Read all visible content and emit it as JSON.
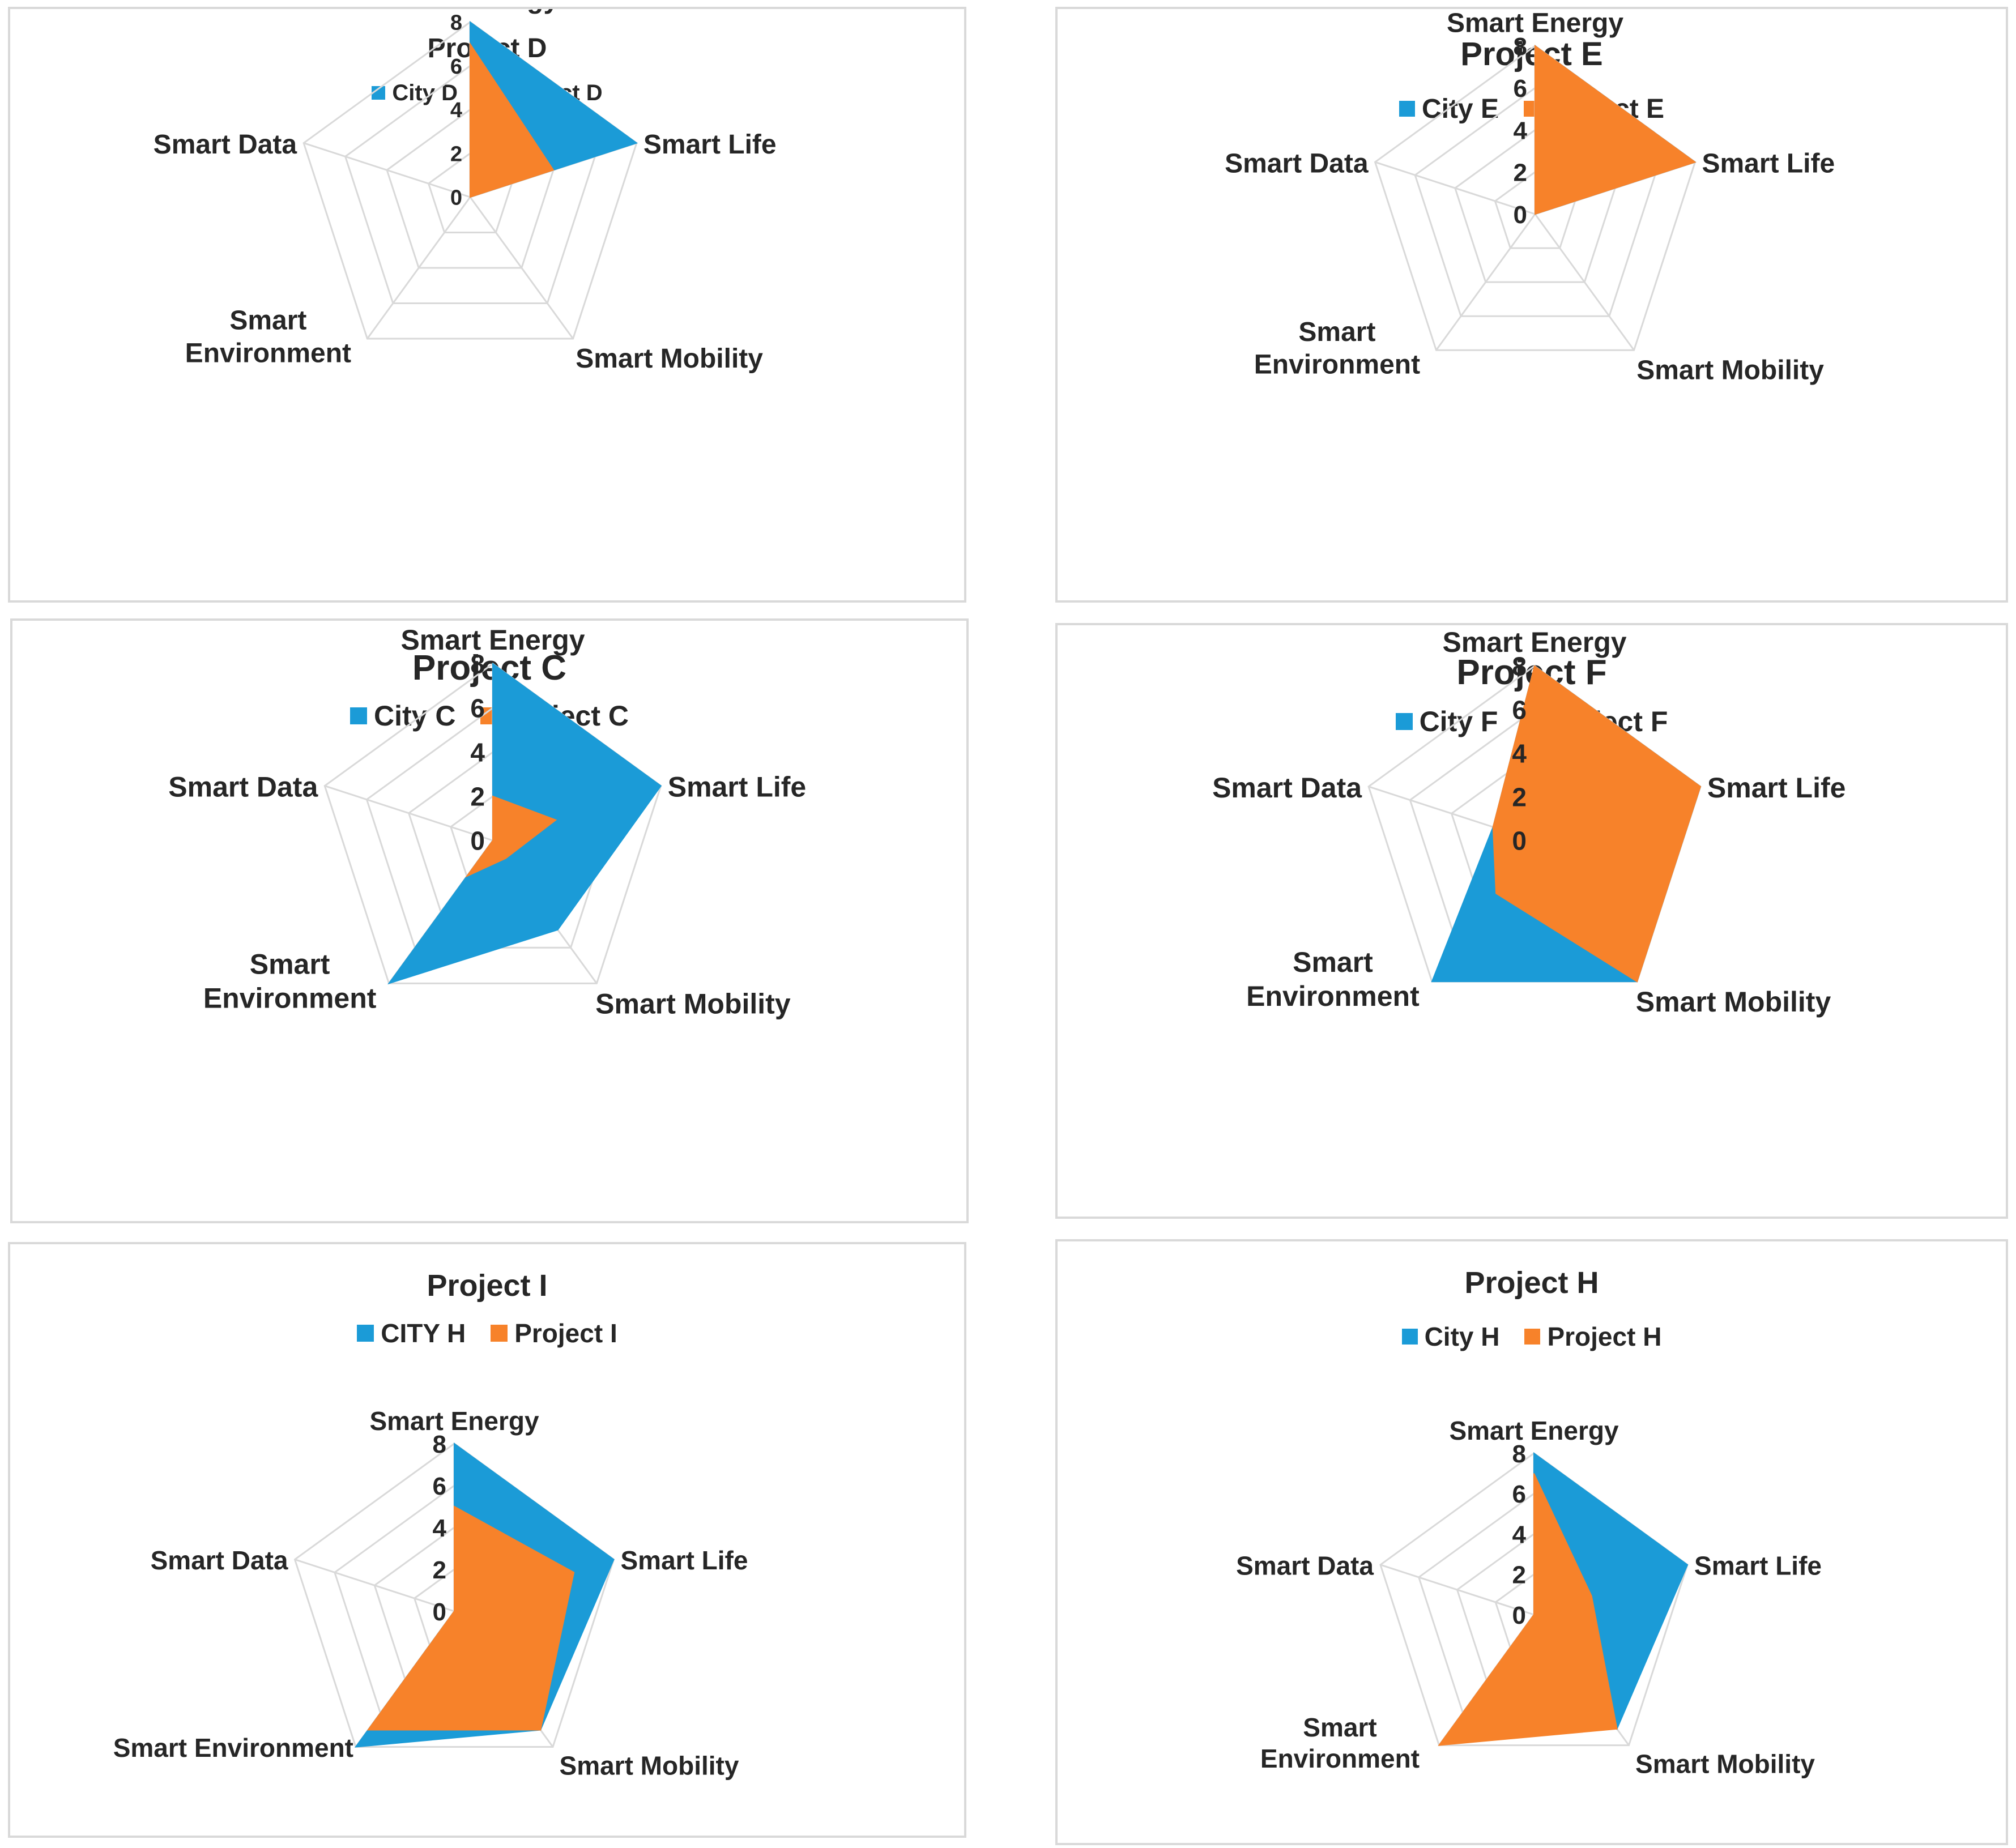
{
  "colors": {
    "city": "#1b9bd7",
    "project": "#f7822a",
    "grid": "#d9d9d9",
    "text": "#262626"
  },
  "chart_data": [
    {
      "id": "D",
      "type": "radar",
      "title": "Project D",
      "categories": [
        "Smart Energy",
        "Smart Life",
        "Smart Mobility",
        "Smart Environment",
        "Smart Data"
      ],
      "category_lines": [
        [
          "Smart Energy"
        ],
        [
          "Smart Life"
        ],
        [
          "Smart Mobility"
        ],
        [
          "Smart",
          "Environment"
        ],
        [
          "Smart Data"
        ]
      ],
      "ticks": [
        "0",
        "2",
        "4",
        "6",
        "8"
      ],
      "rmax": 8,
      "series": [
        {
          "name": "City D",
          "color": "#1b9bd7",
          "values": [
            8,
            8,
            0,
            0,
            0
          ]
        },
        {
          "name": "Project D",
          "color": "#f7822a",
          "values": [
            7,
            4,
            0,
            0,
            0
          ]
        }
      ]
    },
    {
      "id": "E",
      "type": "radar",
      "title": "Project E",
      "categories": [
        "Smart Energy",
        "Smart Life",
        "Smart Mobility",
        "Smart Environment",
        "Smart Data"
      ],
      "category_lines": [
        [
          "Smart Energy"
        ],
        [
          "Smart Life"
        ],
        [
          "Smart Mobility"
        ],
        [
          "Smart",
          "Environment"
        ],
        [
          "Smart Data"
        ]
      ],
      "ticks": [
        "0",
        "2",
        "4",
        "6",
        "8"
      ],
      "rmax": 8,
      "series": [
        {
          "name": "City E",
          "color": "#1b9bd7",
          "values": [
            8,
            8,
            0,
            0,
            0
          ]
        },
        {
          "name": "Project E",
          "color": "#f7822a",
          "values": [
            8,
            8,
            0,
            0,
            0
          ]
        }
      ]
    },
    {
      "id": "C",
      "type": "radar",
      "title": "Project C",
      "categories": [
        "Smart Energy",
        "Smart Life",
        "Smart Mobility",
        "Smart Environment",
        "Smart Data"
      ],
      "category_lines": [
        [
          "Smart Energy"
        ],
        [
          "Smart Life"
        ],
        [
          "Smart Mobility"
        ],
        [
          "Smart",
          "Environment"
        ],
        [
          "Smart Data"
        ]
      ],
      "ticks": [
        "0",
        "2",
        "4",
        "6",
        "8"
      ],
      "rmax": 8,
      "series": [
        {
          "name": "City C",
          "color": "#1b9bd7",
          "values": [
            8,
            8,
            5,
            8,
            0
          ]
        },
        {
          "name": "Project C",
          "color": "#f7822a",
          "values": [
            2,
            3,
            1,
            2,
            0
          ]
        }
      ]
    },
    {
      "id": "F",
      "type": "radar",
      "title": "Project F",
      "categories": [
        "Smart Energy",
        "Smart Life",
        "Smart Mobility",
        "Smart Environment",
        "Smart Data"
      ],
      "category_lines": [
        [
          "Smart Energy"
        ],
        [
          "Smart Life"
        ],
        [
          "Smart Mobility"
        ],
        [
          "Smart",
          "Environment"
        ],
        [
          "Smart Data"
        ]
      ],
      "ticks": [
        "0",
        "2",
        "4",
        "6",
        "8"
      ],
      "rmax": 8,
      "series": [
        {
          "name": "City F",
          "color": "#1b9bd7",
          "values": [
            8,
            8,
            8,
            8,
            2
          ]
        },
        {
          "name": "Project F",
          "color": "#f7822a",
          "values": [
            8,
            8,
            8,
            3,
            2
          ]
        }
      ]
    },
    {
      "id": "I",
      "type": "radar",
      "title": "Project I",
      "categories": [
        "Smart Energy",
        "Smart Life",
        "Smart Mobility",
        "Smart Environment",
        "Smart Data"
      ],
      "category_lines": [
        [
          "Smart Energy"
        ],
        [
          "Smart Life"
        ],
        [
          "Smart Mobility"
        ],
        [
          "Smart Environment"
        ],
        [
          "Smart Data"
        ]
      ],
      "ticks": [
        "0",
        "2",
        "4",
        "6",
        "8"
      ],
      "rmax": 8,
      "series": [
        {
          "name": "CITY H",
          "color": "#1b9bd7",
          "values": [
            8,
            8,
            7,
            8,
            0
          ]
        },
        {
          "name": "Project I",
          "color": "#f7822a",
          "values": [
            5,
            6,
            7,
            7,
            0
          ]
        }
      ]
    },
    {
      "id": "H",
      "type": "radar",
      "title": "Project H",
      "categories": [
        "Smart Energy",
        "Smart Life",
        "Smart Mobility",
        "Smart Environment",
        "Smart Data"
      ],
      "category_lines": [
        [
          "Smart Energy"
        ],
        [
          "Smart Life"
        ],
        [
          "Smart Mobility"
        ],
        [
          "Smart",
          "Environment"
        ],
        [
          "Smart Data"
        ]
      ],
      "ticks": [
        "0",
        "2",
        "4",
        "6",
        "8"
      ],
      "rmax": 8,
      "series": [
        {
          "name": "City H",
          "color": "#1b9bd7",
          "values": [
            8,
            8,
            7,
            0,
            0
          ]
        },
        {
          "name": "Project H",
          "color": "#f7822a",
          "values": [
            7,
            3,
            7,
            8,
            0
          ]
        }
      ]
    }
  ]
}
